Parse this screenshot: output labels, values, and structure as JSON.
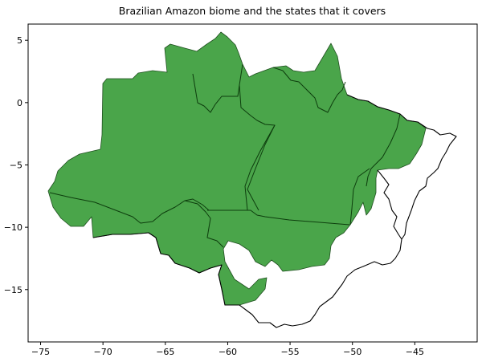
{
  "title": "Brazilian Amazon biome and the states that it covers",
  "colors": {
    "biome_fill": "#4aa54a",
    "state_border": "#0d3d0d",
    "outline": "#000000",
    "background": "#ffffff"
  },
  "axes": {
    "xlim": [
      -76,
      -40
    ],
    "ylim": [
      -19.2,
      6.3
    ],
    "x_ticks": [
      -75,
      -70,
      -65,
      -60,
      -55,
      -50,
      -45
    ],
    "y_ticks": [
      5,
      0,
      -5,
      -10,
      -15
    ],
    "x_tick_labels": [
      "−75",
      "−70",
      "−65",
      "−60",
      "−55",
      "−50",
      "−45"
    ],
    "y_tick_labels": [
      "5",
      "0",
      "−5",
      "−10",
      "−15"
    ]
  }
}
